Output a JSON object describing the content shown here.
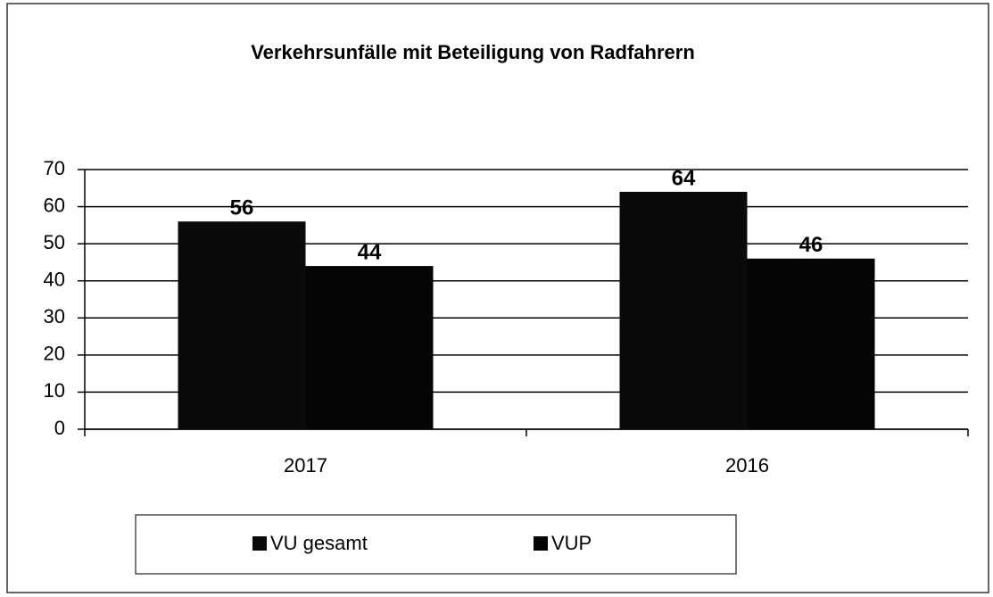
{
  "chart_data": {
    "type": "bar",
    "title": "Verkehrsunfälle mit Beteiligung von Radfahrern",
    "categories": [
      "2017",
      "2016"
    ],
    "series": [
      {
        "name": "VU gesamt",
        "color": "#0a0a0a",
        "values": [
          56,
          64
        ]
      },
      {
        "name": "VUP",
        "color": "#050505",
        "values": [
          44,
          46
        ]
      }
    ],
    "ylim": [
      0,
      70
    ],
    "yticks": [
      0,
      10,
      20,
      30,
      40,
      50,
      60,
      70
    ],
    "grid": true,
    "legend": "bottom"
  }
}
